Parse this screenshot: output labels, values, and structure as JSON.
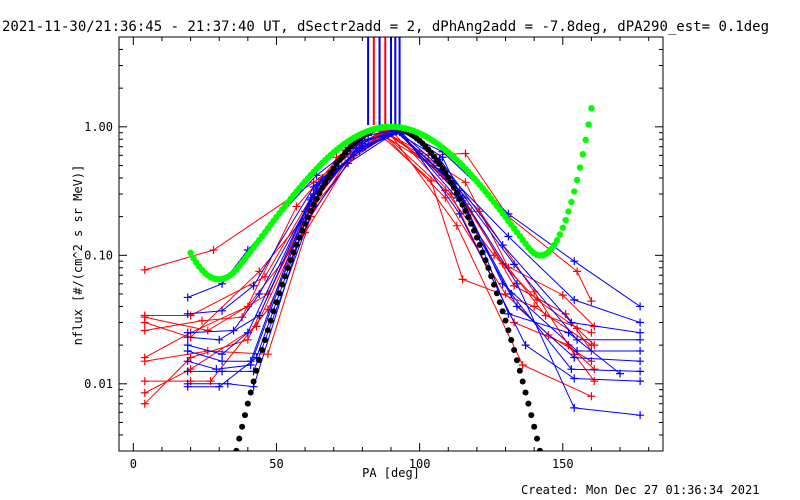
{
  "chart_data": {
    "type": "line",
    "title": "2021-11-30/21:36:45 - 21:37:40 UT, dSectr2add = 2, dPhAng2add = -7.8deg, dPA290_est=  0.1deg",
    "xlabel": "PA [deg]",
    "ylabel": "nflux [#/(cm^2 s sr MeV)]",
    "xlim": [
      -5,
      185
    ],
    "ylim": [
      0.003,
      5.0
    ],
    "yscale": "log",
    "xticks": [
      0,
      50,
      100,
      150
    ],
    "xtick_labels": [
      "0",
      "50",
      "100",
      "150"
    ],
    "yticks": [
      0.01,
      0.1,
      1.0
    ],
    "ytick_labels": [
      "0.01",
      "0.10",
      "1.00"
    ],
    "grid": false,
    "legend": "none",
    "footer": "Created: Mon Dec 27 01:36:34 2021",
    "colors": {
      "red": "#ff0000",
      "blue": "#0000ff",
      "green": "#00ff00",
      "black": "#000000"
    },
    "pa_markers": [
      {
        "pa": 82,
        "color": "#0000ff"
      },
      {
        "pa": 84,
        "color": "#ff0000"
      },
      {
        "pa": 86,
        "color": "#0000ff"
      },
      {
        "pa": 88,
        "color": "#ff0000"
      },
      {
        "pa": 90,
        "color": "#0000ff"
      },
      {
        "pa": 91.5,
        "color": "#0000ff"
      },
      {
        "pa": 93,
        "color": "#0000ff"
      }
    ],
    "series": [
      {
        "color": "#ff0000",
        "values": [
          [
            4,
            0.077
          ],
          [
            28,
            0.11
          ],
          [
            63,
            0.37
          ],
          [
            76,
            0.62
          ],
          [
            88,
            0.9
          ],
          [
            103,
            0.6
          ],
          [
            116,
            0.62
          ],
          [
            131,
            0.2
          ],
          [
            155,
            0.075
          ],
          [
            160,
            0.044
          ]
        ]
      },
      {
        "color": "#ff0000",
        "values": [
          [
            4,
            0.034
          ],
          [
            20,
            0.034
          ],
          [
            46,
            0.068
          ],
          [
            66,
            0.4
          ],
          [
            78,
            0.68
          ],
          [
            87,
            0.92
          ],
          [
            100,
            0.62
          ],
          [
            116,
            0.37
          ],
          [
            131,
            0.08
          ],
          [
            144,
            0.034
          ],
          [
            160,
            0.025
          ]
        ]
      },
      {
        "color": "#ff0000",
        "values": [
          [
            4,
            0.033
          ],
          [
            26,
            0.026
          ],
          [
            47,
            0.05
          ],
          [
            71,
            0.58
          ],
          [
            87,
            0.93
          ],
          [
            105,
            0.5
          ],
          [
            116,
            0.25
          ],
          [
            129,
            0.086
          ],
          [
            150,
            0.049
          ],
          [
            161,
            0.028
          ]
        ]
      },
      {
        "color": "#ff0000",
        "values": [
          [
            4,
            0.03
          ],
          [
            20,
            0.023
          ],
          [
            44,
            0.075
          ],
          [
            63,
            0.24
          ],
          [
            80,
            0.7
          ],
          [
            89,
            0.9
          ],
          [
            108,
            0.42
          ],
          [
            118,
            0.22
          ],
          [
            133,
            0.058
          ],
          [
            151,
            0.035
          ],
          [
            160,
            0.018
          ]
        ]
      },
      {
        "color": "#ff0000",
        "values": [
          [
            4,
            0.026
          ],
          [
            24,
            0.031
          ],
          [
            38,
            0.033
          ],
          [
            57,
            0.24
          ],
          [
            74,
            0.66
          ],
          [
            86,
            0.88
          ],
          [
            104,
            0.38
          ],
          [
            115,
            0.065
          ],
          [
            140,
            0.04
          ],
          [
            160,
            0.02
          ]
        ]
      },
      {
        "color": "#ff0000",
        "values": [
          [
            4,
            0.016
          ],
          [
            20,
            0.025
          ],
          [
            40,
            0.04
          ],
          [
            60,
            0.15
          ],
          [
            76,
            0.58
          ],
          [
            88,
            0.86
          ],
          [
            109,
            0.32
          ],
          [
            126,
            0.1
          ],
          [
            141,
            0.045
          ],
          [
            155,
            0.027
          ],
          [
            161,
            0.02
          ]
        ]
      },
      {
        "color": "#ff0000",
        "values": [
          [
            4,
            0.015
          ],
          [
            26,
            0.018
          ],
          [
            47,
            0.017
          ],
          [
            62,
            0.2
          ],
          [
            74,
            0.52
          ],
          [
            88,
            0.84
          ],
          [
            109,
            0.28
          ],
          [
            130,
            0.05
          ],
          [
            145,
            0.024
          ],
          [
            160,
            0.015
          ]
        ]
      },
      {
        "color": "#ff0000",
        "values": [
          [
            4,
            0.0105
          ],
          [
            20,
            0.0105
          ],
          [
            27,
            0.0105
          ],
          [
            47,
            0.038
          ],
          [
            69,
            0.44
          ],
          [
            87,
            0.87
          ],
          [
            108,
            0.44
          ],
          [
            121,
            0.22
          ],
          [
            140,
            0.052
          ],
          [
            154,
            0.017
          ],
          [
            161,
            0.0105
          ]
        ]
      },
      {
        "color": "#ff0000",
        "values": [
          [
            4,
            0.0085
          ],
          [
            20,
            0.013
          ],
          [
            43,
            0.028
          ],
          [
            63,
            0.26
          ],
          [
            79,
            0.72
          ],
          [
            89,
            0.93
          ],
          [
            113,
            0.17
          ],
          [
            136,
            0.014
          ],
          [
            160,
            0.008
          ]
        ]
      },
      {
        "color": "#ff0000",
        "values": [
          [
            4,
            0.007
          ],
          [
            20,
            0.016
          ],
          [
            40,
            0.022
          ],
          [
            64,
            0.32
          ],
          [
            82,
            0.8
          ],
          [
            90,
            0.94
          ],
          [
            111,
            0.3
          ],
          [
            133,
            0.03
          ],
          [
            152,
            0.02
          ],
          [
            161,
            0.013
          ]
        ]
      },
      {
        "color": "#0000ff",
        "values": [
          [
            19,
            0.047
          ],
          [
            31,
            0.06
          ],
          [
            40,
            0.11
          ],
          [
            64,
            0.42
          ],
          [
            82,
            0.86
          ],
          [
            92,
            0.95
          ],
          [
            108,
            0.64
          ],
          [
            131,
            0.21
          ],
          [
            154,
            0.09
          ],
          [
            177,
            0.04
          ]
        ]
      },
      {
        "color": "#0000ff",
        "values": [
          [
            19,
            0.035
          ],
          [
            31,
            0.037
          ],
          [
            42,
            0.058
          ],
          [
            63,
            0.34
          ],
          [
            80,
            0.78
          ],
          [
            93,
            0.92
          ],
          [
            108,
            0.47
          ],
          [
            131,
            0.14
          ],
          [
            154,
            0.045
          ],
          [
            177,
            0.03
          ]
        ]
      },
      {
        "color": "#0000ff",
        "values": [
          [
            19,
            0.025
          ],
          [
            35,
            0.026
          ],
          [
            44,
            0.05
          ],
          [
            66,
            0.39
          ],
          [
            79,
            0.65
          ],
          [
            91,
            0.94
          ],
          [
            107,
            0.56
          ],
          [
            129,
            0.12
          ],
          [
            153,
            0.03
          ],
          [
            177,
            0.025
          ]
        ]
      },
      {
        "color": "#0000ff",
        "values": [
          [
            19,
            0.023
          ],
          [
            30,
            0.022
          ],
          [
            44,
            0.034
          ],
          [
            62,
            0.28
          ],
          [
            77,
            0.6
          ],
          [
            92,
            0.93
          ],
          [
            114,
            0.32
          ],
          [
            133,
            0.085
          ],
          [
            155,
            0.022
          ],
          [
            177,
            0.022
          ]
        ]
      },
      {
        "color": "#0000ff",
        "values": [
          [
            19,
            0.02
          ],
          [
            31,
            0.017
          ],
          [
            40,
            0.025
          ],
          [
            64,
            0.35
          ],
          [
            81,
            0.7
          ],
          [
            94,
            0.92
          ],
          [
            108,
            0.58
          ],
          [
            129,
            0.06
          ],
          [
            155,
            0.018
          ],
          [
            177,
            0.018
          ]
        ]
      },
      {
        "color": "#0000ff",
        "values": [
          [
            19,
            0.018
          ],
          [
            31,
            0.015
          ],
          [
            41,
            0.015
          ],
          [
            60,
            0.22
          ],
          [
            78,
            0.68
          ],
          [
            93,
            0.91
          ],
          [
            113,
            0.28
          ],
          [
            134,
            0.04
          ],
          [
            154,
            0.016
          ],
          [
            177,
            0.015
          ]
        ]
      },
      {
        "color": "#0000ff",
        "values": [
          [
            19,
            0.015
          ],
          [
            29,
            0.013
          ],
          [
            41,
            0.014
          ],
          [
            62,
            0.27
          ],
          [
            80,
            0.74
          ],
          [
            91,
            0.95
          ],
          [
            110,
            0.4
          ],
          [
            132,
            0.05
          ],
          [
            153,
            0.013
          ],
          [
            177,
            0.0125
          ]
        ]
      },
      {
        "color": "#0000ff",
        "values": [
          [
            19,
            0.0125
          ],
          [
            31,
            0.0125
          ],
          [
            42,
            0.0125
          ],
          [
            66,
            0.36
          ],
          [
            82,
            0.8
          ],
          [
            94,
            0.9
          ],
          [
            114,
            0.21
          ],
          [
            137,
            0.02
          ],
          [
            154,
            0.011
          ],
          [
            177,
            0.0105
          ]
        ]
      },
      {
        "color": "#0000ff",
        "values": [
          [
            19,
            0.01
          ],
          [
            33,
            0.01
          ],
          [
            42,
            0.0095
          ],
          [
            63,
            0.3
          ],
          [
            79,
            0.68
          ],
          [
            92,
            0.93
          ],
          [
            112,
            0.36
          ],
          [
            134,
            0.06
          ],
          [
            154,
            0.0065
          ],
          [
            177,
            0.0057
          ]
        ]
      },
      {
        "color": "#0000ff",
        "values": [
          [
            19,
            0.0095
          ],
          [
            30,
            0.0095
          ],
          [
            43,
            0.016
          ],
          [
            60,
            0.18
          ],
          [
            75,
            0.52
          ],
          [
            92,
            0.92
          ],
          [
            115,
            0.28
          ],
          [
            131,
            0.035
          ],
          [
            152,
            0.025
          ],
          [
            170,
            0.012
          ]
        ]
      }
    ]
  }
}
